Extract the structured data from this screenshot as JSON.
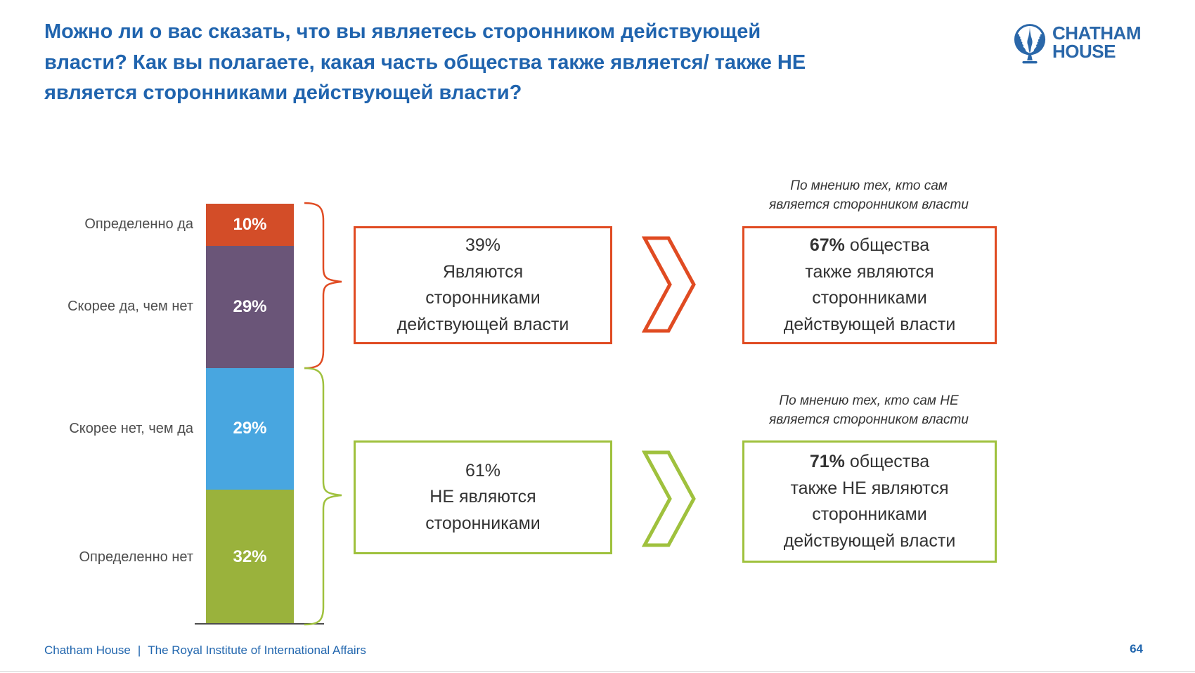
{
  "slide": {
    "title_lines": [
      "Можно ли о вас сказать, что вы являетесь сторонником действующей",
      "власти? Как вы полагаете, какая часть общества также является/ также НЕ",
      "является сторонниками действующей власти?"
    ],
    "page_number": "64"
  },
  "logo": {
    "line1": "CHATHAM",
    "line2": "HOUSE"
  },
  "chart_data": {
    "type": "bar",
    "subtype": "stacked-column",
    "categories": [
      "Определенно да",
      "Скорее да, чем нет",
      "Скорее нет, чем да",
      "Определенно нет"
    ],
    "values": [
      10,
      29,
      29,
      32
    ],
    "value_labels": [
      "10%",
      "29%",
      "29%",
      "32%"
    ],
    "segment_colors": [
      "#D34D28",
      "#6A5578",
      "#48A6E0",
      "#9AB23C"
    ],
    "ylim": [
      0,
      100
    ],
    "grid": false,
    "legend": false,
    "groups": [
      {
        "name": "Являются сторонниками действующей власти",
        "sum_label": "39%",
        "members": [
          "Определенно да",
          "Скорее да, чем нет"
        ]
      },
      {
        "name": "НЕ являются сторонниками",
        "sum_label": "61%",
        "members": [
          "Скорее нет, чем да",
          "Определенно нет"
        ]
      }
    ]
  },
  "callouts": {
    "supporters": {
      "summary_lines": [
        "39%",
        "Являются",
        "сторонниками",
        "действующей власти"
      ],
      "annotation_lines": [
        "По мнению тех, кто сам",
        "является сторонником власти"
      ],
      "result_bold": "67%",
      "result_rest": " общества",
      "result_lines": [
        "также являются",
        "сторонниками",
        "действующей власти"
      ]
    },
    "non_supporters": {
      "summary_lines": [
        "61%",
        "НЕ являются",
        "сторонниками"
      ],
      "annotation_lines": [
        "По мнению тех, кто сам НЕ",
        "является сторонником власти"
      ],
      "result_bold": "71%",
      "result_rest": " общества",
      "result_lines": [
        "также НЕ являются",
        "сторонниками",
        "действующей власти"
      ]
    }
  },
  "footer": {
    "org": "Chatham House",
    "sep": "|",
    "name": "The Royal Institute of International Affairs"
  },
  "colors": {
    "title_blue": "#2064AE",
    "logo_blue": "#2A67A9",
    "footer_blue": "#2166AE",
    "accent_orange": "#E04B22",
    "accent_green": "#9FC13D",
    "text_dark": "#333333",
    "label_gray": "#4D4D4D",
    "axis_gray": "#4D4D4D"
  }
}
